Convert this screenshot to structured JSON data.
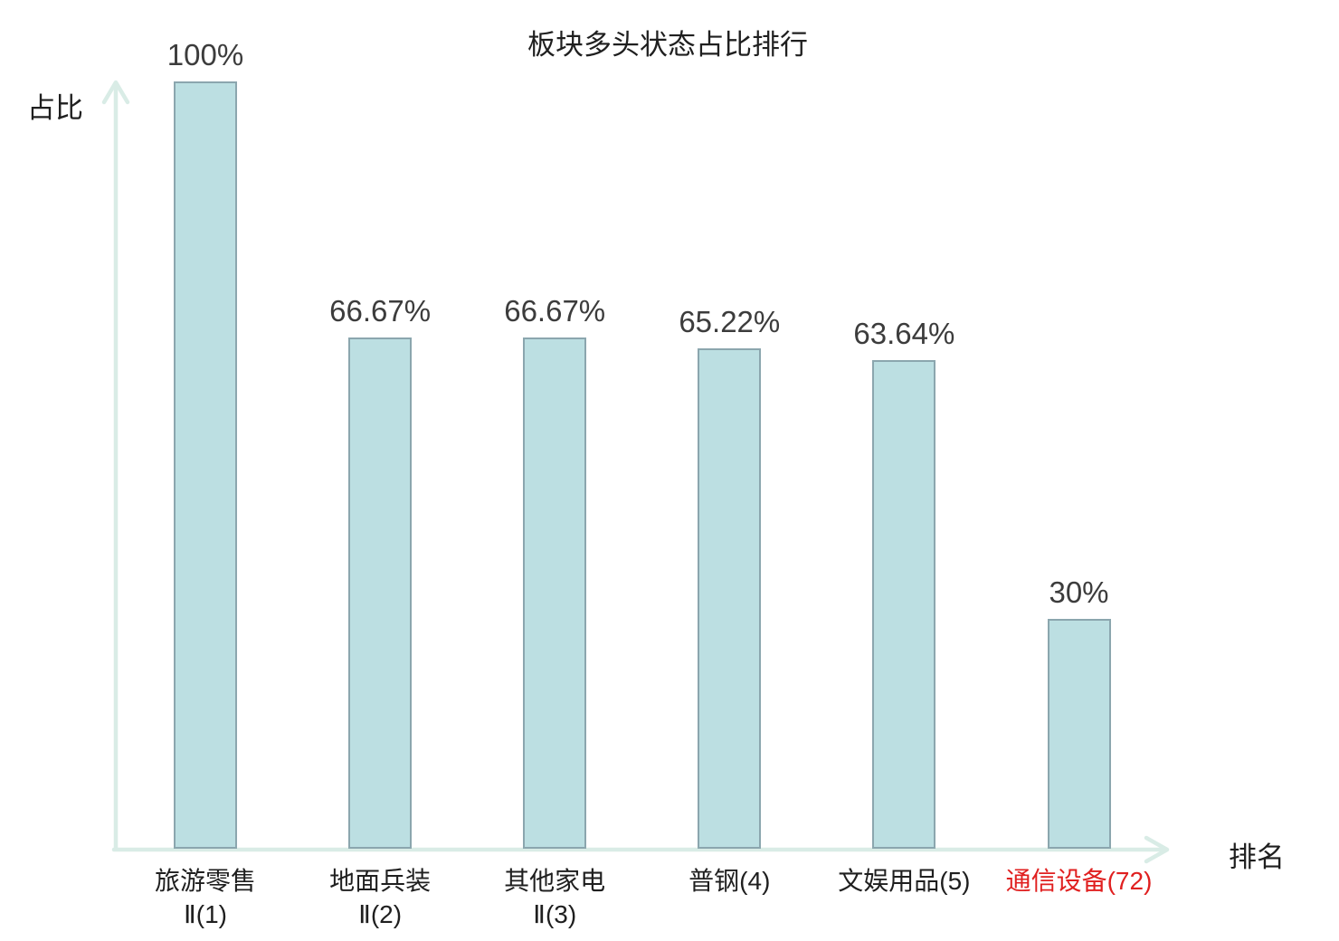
{
  "chart": {
    "title": "板块多头状态占比排行",
    "y_axis_label": "占比",
    "x_axis_label": "排名"
  },
  "chart_data": {
    "type": "bar",
    "title": "板块多头状态占比排行",
    "xlabel": "排名",
    "ylabel": "占比",
    "ylim": [
      0,
      100
    ],
    "grid": false,
    "legend": "none",
    "categories": [
      "旅游零售Ⅱ(1)",
      "地面兵装Ⅱ(2)",
      "其他家电Ⅱ(3)",
      "普钢(4)",
      "文娱用品(5)",
      "通信设备(72)"
    ],
    "values": [
      100,
      66.67,
      66.67,
      65.22,
      63.64,
      30
    ],
    "items": [
      {
        "label_line1": "旅游零售",
        "label_line2": "Ⅱ(1)",
        "value": 100,
        "value_label": "100%",
        "highlighted": false
      },
      {
        "label_line1": "地面兵装",
        "label_line2": "Ⅱ(2)",
        "value": 66.67,
        "value_label": "66.67%",
        "highlighted": false
      },
      {
        "label_line1": "其他家电",
        "label_line2": "Ⅱ(3)",
        "value": 66.67,
        "value_label": "66.67%",
        "highlighted": false
      },
      {
        "label_line1": "普钢(4)",
        "label_line2": "",
        "value": 65.22,
        "value_label": "65.22%",
        "highlighted": false
      },
      {
        "label_line1": "文娱用品(5)",
        "label_line2": "",
        "value": 63.64,
        "value_label": "63.64%",
        "highlighted": false
      },
      {
        "label_line1": "通信设备(72)",
        "label_line2": "",
        "value": 30,
        "value_label": "30%",
        "highlighted": true
      }
    ],
    "colors": {
      "bar_fill": "#bcdfe2",
      "bar_border": "#8ba6ae",
      "axis": "#d9ece6",
      "text": "#1f1f1f",
      "value_text": "#3c3c3c",
      "highlight": "#e02020",
      "background": "#ffffff"
    }
  }
}
